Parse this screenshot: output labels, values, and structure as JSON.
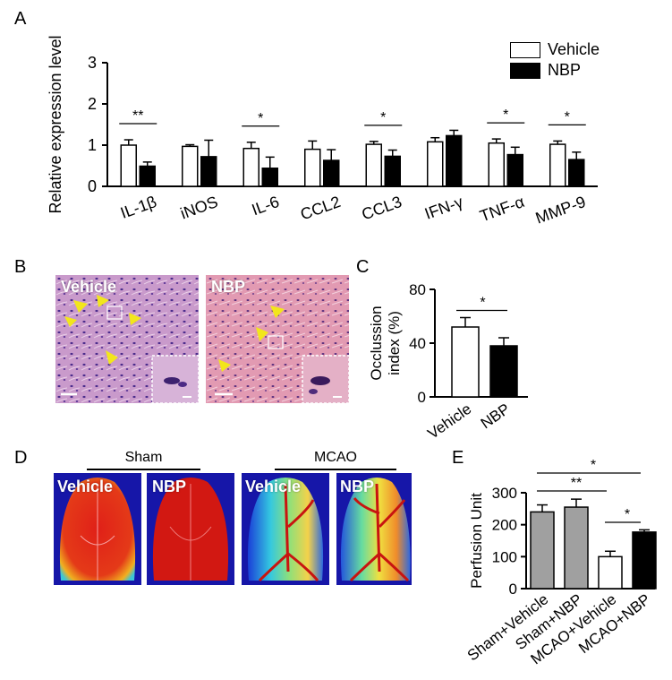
{
  "panels": {
    "A": "A",
    "B": "B",
    "C": "C",
    "D": "D",
    "E": "E"
  },
  "colors": {
    "vehicle": "#ffffff",
    "nbp": "#000000",
    "sham": "#a0a0a0",
    "arrow": "#f2e61c",
    "tissue": "#c58fc6"
  },
  "legend": {
    "vehicle": "Vehicle",
    "nbp": "NBP"
  },
  "panel_b": {
    "vehicle_label": "Vehicle",
    "nbp_label": "NBP"
  },
  "panel_d": {
    "sham_label": "Sham",
    "mcao_label": "MCAO",
    "images": [
      "Vehicle",
      "NBP",
      "Vehicle",
      "NBP"
    ]
  },
  "chart_data": [
    {
      "type": "bar",
      "ylabel": "Relative expression level",
      "ylim": [
        0,
        3
      ],
      "yticks": [
        "0",
        "1",
        "2",
        "3"
      ],
      "categories": [
        "IL-1β",
        "iNOS",
        "IL-6",
        "CCL2",
        "CCL3",
        "IFN-γ",
        "TNF-α",
        "MMP-9"
      ],
      "series": [
        {
          "name": "Vehicle",
          "values": [
            1.0,
            0.97,
            0.92,
            0.9,
            1.02,
            1.08,
            1.05,
            1.02
          ],
          "errors": [
            0.13,
            0.04,
            0.15,
            0.2,
            0.07,
            0.1,
            0.1,
            0.08
          ]
        },
        {
          "name": "NBP",
          "values": [
            0.49,
            0.72,
            0.44,
            0.63,
            0.73,
            1.23,
            0.77,
            0.65
          ],
          "errors": [
            0.1,
            0.4,
            0.27,
            0.26,
            0.15,
            0.13,
            0.18,
            0.18
          ]
        }
      ],
      "significance": [
        {
          "category": "IL-1β",
          "label": "**"
        },
        {
          "category": "IL-6",
          "label": "*"
        },
        {
          "category": "CCL3",
          "label": "*"
        },
        {
          "category": "TNF-α",
          "label": "*"
        },
        {
          "category": "MMP-9",
          "label": "*"
        }
      ]
    },
    {
      "type": "bar",
      "ylabel": "Occlussion index (%)",
      "ylim": [
        0,
        80
      ],
      "yticks": [
        "0",
        "40",
        "80"
      ],
      "categories": [
        "Vehicle",
        "NBP"
      ],
      "values": [
        52,
        38
      ],
      "errors": [
        7,
        6
      ],
      "significance": [
        {
          "label": "*"
        }
      ]
    },
    {
      "type": "bar",
      "ylabel": "Perfusion Unit",
      "ylim": [
        0,
        300
      ],
      "yticks": [
        "0",
        "100",
        "200",
        "300"
      ],
      "categories": [
        "Sham+Vehicle",
        "Sham+NBP",
        "MCAO+Vehicle",
        "MCAO+NBP"
      ],
      "values": [
        240,
        255,
        100,
        177
      ],
      "errors": [
        22,
        25,
        17,
        7
      ],
      "significance": [
        {
          "label": "*"
        },
        {
          "label": "**"
        },
        {
          "label": "*"
        }
      ]
    }
  ]
}
